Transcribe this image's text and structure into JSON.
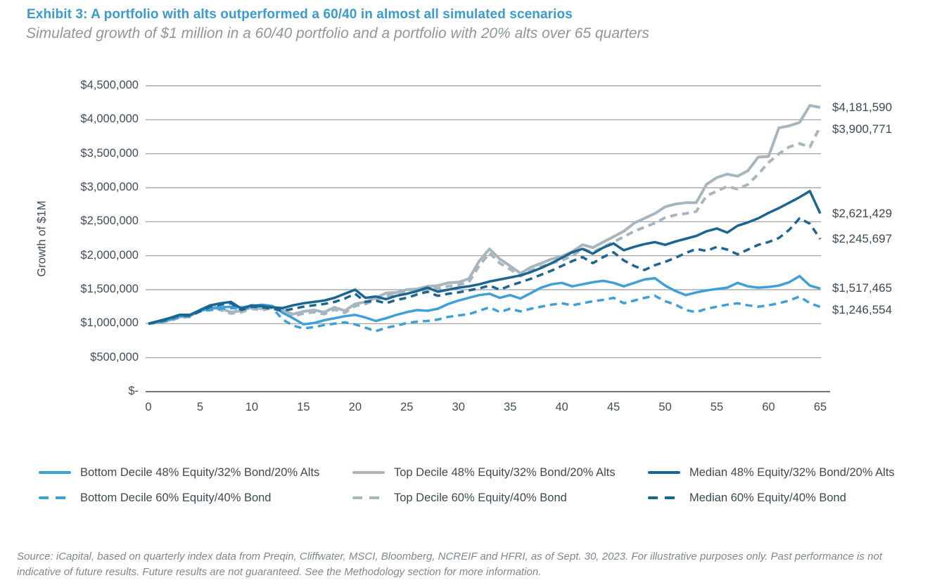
{
  "header": {
    "title": "Exhibit 3: A portfolio with alts outperformed a 60/40 in almost all simulated scenarios",
    "subtitle": "Simulated growth of $1 million in a 60/40 portfolio and a portfolio with 20% alts over 65 quarters"
  },
  "source_note": "Source: iCapital, based on quarterly index data from Preqin, Cliffwater, MSCI, Bloomberg, NCREIF and HFRI, as of Sept. 30, 2023. For illustrative purposes only. Past performance is not indicative of future results. Future results are not guaranteed. See the Methodology section for more information.",
  "colors": {
    "title_blue": "#3b9ace",
    "light_blue_series": "#3fa0d9",
    "dark_blue_series": "#1b6591",
    "gray_series": "#a7b6be",
    "gridline": "#9a9a9a",
    "axis_line": "#6f7578",
    "axis_text": "#414d58"
  },
  "chart_data": {
    "type": "line",
    "ylabel": "Growth of $1M",
    "ylim": [
      0,
      4500000
    ],
    "ytick_step": 500000,
    "ytick_labels": [
      "$-",
      "$500,000",
      "$1,000,000",
      "$1,500,000",
      "$2,000,000",
      "$2,500,000",
      "$3,000,000",
      "$3,500,000",
      "$4,000,000",
      "$4,500,000"
    ],
    "xticks": [
      0,
      5,
      10,
      15,
      20,
      25,
      30,
      35,
      40,
      45,
      50,
      55,
      60,
      65
    ],
    "xlim": [
      0,
      65
    ],
    "grid": "horizontal-only",
    "legend_position": "bottom",
    "series": [
      {
        "name": "Bottom Decile 48% Equity/32% Bond/20% Alts",
        "color": "#3fa0d9",
        "dash": "solid",
        "end_label": "$1,517,465",
        "end_value": 1517465,
        "values": [
          1000000,
          1030000,
          1060000,
          1110000,
          1120000,
          1190000,
          1220000,
          1240000,
          1250000,
          1240000,
          1260000,
          1280000,
          1260000,
          1160000,
          1080000,
          990000,
          1010000,
          1050000,
          1080000,
          1110000,
          1130000,
          1090000,
          1040000,
          1080000,
          1130000,
          1170000,
          1200000,
          1190000,
          1220000,
          1290000,
          1340000,
          1380000,
          1420000,
          1440000,
          1380000,
          1420000,
          1370000,
          1450000,
          1530000,
          1580000,
          1600000,
          1550000,
          1580000,
          1610000,
          1630000,
          1600000,
          1550000,
          1600000,
          1650000,
          1670000,
          1560000,
          1480000,
          1420000,
          1460000,
          1490000,
          1510000,
          1530000,
          1600000,
          1550000,
          1530000,
          1540000,
          1560000,
          1610000,
          1700000,
          1560000,
          1517465
        ]
      },
      {
        "name": "Top Decile 48% Equity/32% Bond/20% Alts",
        "color": "#a7b6be",
        "dash": "solid",
        "end_label": "$4,181,590",
        "end_value": 4181590,
        "values": [
          1000000,
          1020000,
          1050000,
          1100000,
          1110000,
          1200000,
          1270000,
          1220000,
          1170000,
          1190000,
          1240000,
          1220000,
          1250000,
          1200000,
          1140000,
          1180000,
          1200000,
          1170000,
          1240000,
          1190000,
          1290000,
          1320000,
          1380000,
          1450000,
          1460000,
          1500000,
          1510000,
          1550000,
          1560000,
          1600000,
          1610000,
          1660000,
          1920000,
          2100000,
          1950000,
          1850000,
          1740000,
          1830000,
          1890000,
          1950000,
          1990000,
          2060000,
          2160000,
          2120000,
          2200000,
          2280000,
          2360000,
          2480000,
          2550000,
          2620000,
          2720000,
          2760000,
          2780000,
          2780000,
          3050000,
          3150000,
          3200000,
          3170000,
          3250000,
          3450000,
          3460000,
          3880000,
          3910000,
          3960000,
          4210000,
          4181590
        ]
      },
      {
        "name": "Median 48% Equity/32% Bond/20% Alts",
        "color": "#1b6591",
        "dash": "solid",
        "end_label": "$2,621,429",
        "end_value": 2621429,
        "values": [
          1000000,
          1040000,
          1080000,
          1130000,
          1130000,
          1200000,
          1270000,
          1300000,
          1320000,
          1220000,
          1270000,
          1260000,
          1240000,
          1230000,
          1270000,
          1300000,
          1320000,
          1340000,
          1380000,
          1440000,
          1500000,
          1380000,
          1400000,
          1360000,
          1410000,
          1440000,
          1480000,
          1530000,
          1470000,
          1500000,
          1530000,
          1550000,
          1580000,
          1620000,
          1650000,
          1680000,
          1710000,
          1760000,
          1820000,
          1890000,
          1970000,
          2050000,
          2100000,
          2030000,
          2120000,
          2180000,
          2080000,
          2130000,
          2170000,
          2200000,
          2160000,
          2210000,
          2250000,
          2290000,
          2360000,
          2400000,
          2340000,
          2440000,
          2490000,
          2550000,
          2630000,
          2700000,
          2780000,
          2860000,
          2950000,
          2621429
        ]
      },
      {
        "name": "Bottom Decile 60% Equity/40% Bond",
        "color": "#3fa0d9",
        "dash": "dashed",
        "end_label": "$1,246,554",
        "end_value": 1246554,
        "values": [
          1000000,
          1020000,
          1050000,
          1100000,
          1110000,
          1180000,
          1200000,
          1220000,
          1230000,
          1220000,
          1240000,
          1260000,
          1230000,
          1060000,
          970000,
          930000,
          950000,
          980000,
          1000000,
          1020000,
          990000,
          940000,
          890000,
          940000,
          970000,
          1010000,
          1030000,
          1040000,
          1060000,
          1100000,
          1120000,
          1140000,
          1190000,
          1240000,
          1170000,
          1220000,
          1180000,
          1220000,
          1250000,
          1280000,
          1300000,
          1270000,
          1300000,
          1330000,
          1350000,
          1380000,
          1300000,
          1340000,
          1380000,
          1410000,
          1330000,
          1280000,
          1200000,
          1170000,
          1220000,
          1250000,
          1280000,
          1300000,
          1270000,
          1250000,
          1270000,
          1300000,
          1340000,
          1400000,
          1300000,
          1246554
        ]
      },
      {
        "name": "Top Decile 60% Equity/40% Bond",
        "color": "#a7b6be",
        "dash": "dashed",
        "end_label": "$3,900,771",
        "end_value": 3900771,
        "values": [
          1000000,
          1020000,
          1040000,
          1090000,
          1100000,
          1190000,
          1250000,
          1200000,
          1150000,
          1170000,
          1220000,
          1200000,
          1230000,
          1180000,
          1110000,
          1150000,
          1170000,
          1140000,
          1210000,
          1160000,
          1260000,
          1290000,
          1350000,
          1410000,
          1420000,
          1460000,
          1470000,
          1510000,
          1520000,
          1550000,
          1570000,
          1610000,
          1850000,
          2040000,
          1890000,
          1800000,
          1700000,
          1780000,
          1840000,
          1890000,
          1930000,
          2000000,
          2100000,
          2050000,
          2130000,
          2200000,
          2280000,
          2360000,
          2420000,
          2480000,
          2560000,
          2600000,
          2620000,
          2650000,
          2880000,
          2950000,
          3020000,
          2980000,
          3050000,
          3200000,
          3370000,
          3500000,
          3600000,
          3650000,
          3600000,
          3900771
        ]
      },
      {
        "name": "Median 60% Equity/40% Bond",
        "color": "#1b6591",
        "dash": "dashed",
        "end_label": "$2,245,697",
        "end_value": 2245697,
        "values": [
          1000000,
          1030000,
          1070000,
          1120000,
          1120000,
          1180000,
          1250000,
          1280000,
          1300000,
          1200000,
          1250000,
          1240000,
          1220000,
          1190000,
          1220000,
          1250000,
          1270000,
          1290000,
          1320000,
          1370000,
          1440000,
          1320000,
          1340000,
          1300000,
          1350000,
          1380000,
          1430000,
          1470000,
          1410000,
          1440000,
          1460000,
          1490000,
          1520000,
          1560000,
          1500000,
          1560000,
          1610000,
          1660000,
          1720000,
          1780000,
          1850000,
          1920000,
          1980000,
          1890000,
          1980000,
          2050000,
          1930000,
          1850000,
          1790000,
          1860000,
          1910000,
          1970000,
          2040000,
          2100000,
          2070000,
          2130000,
          2090000,
          2020000,
          2090000,
          2160000,
          2200000,
          2260000,
          2380000,
          2550000,
          2470000,
          2245697
        ]
      }
    ]
  }
}
